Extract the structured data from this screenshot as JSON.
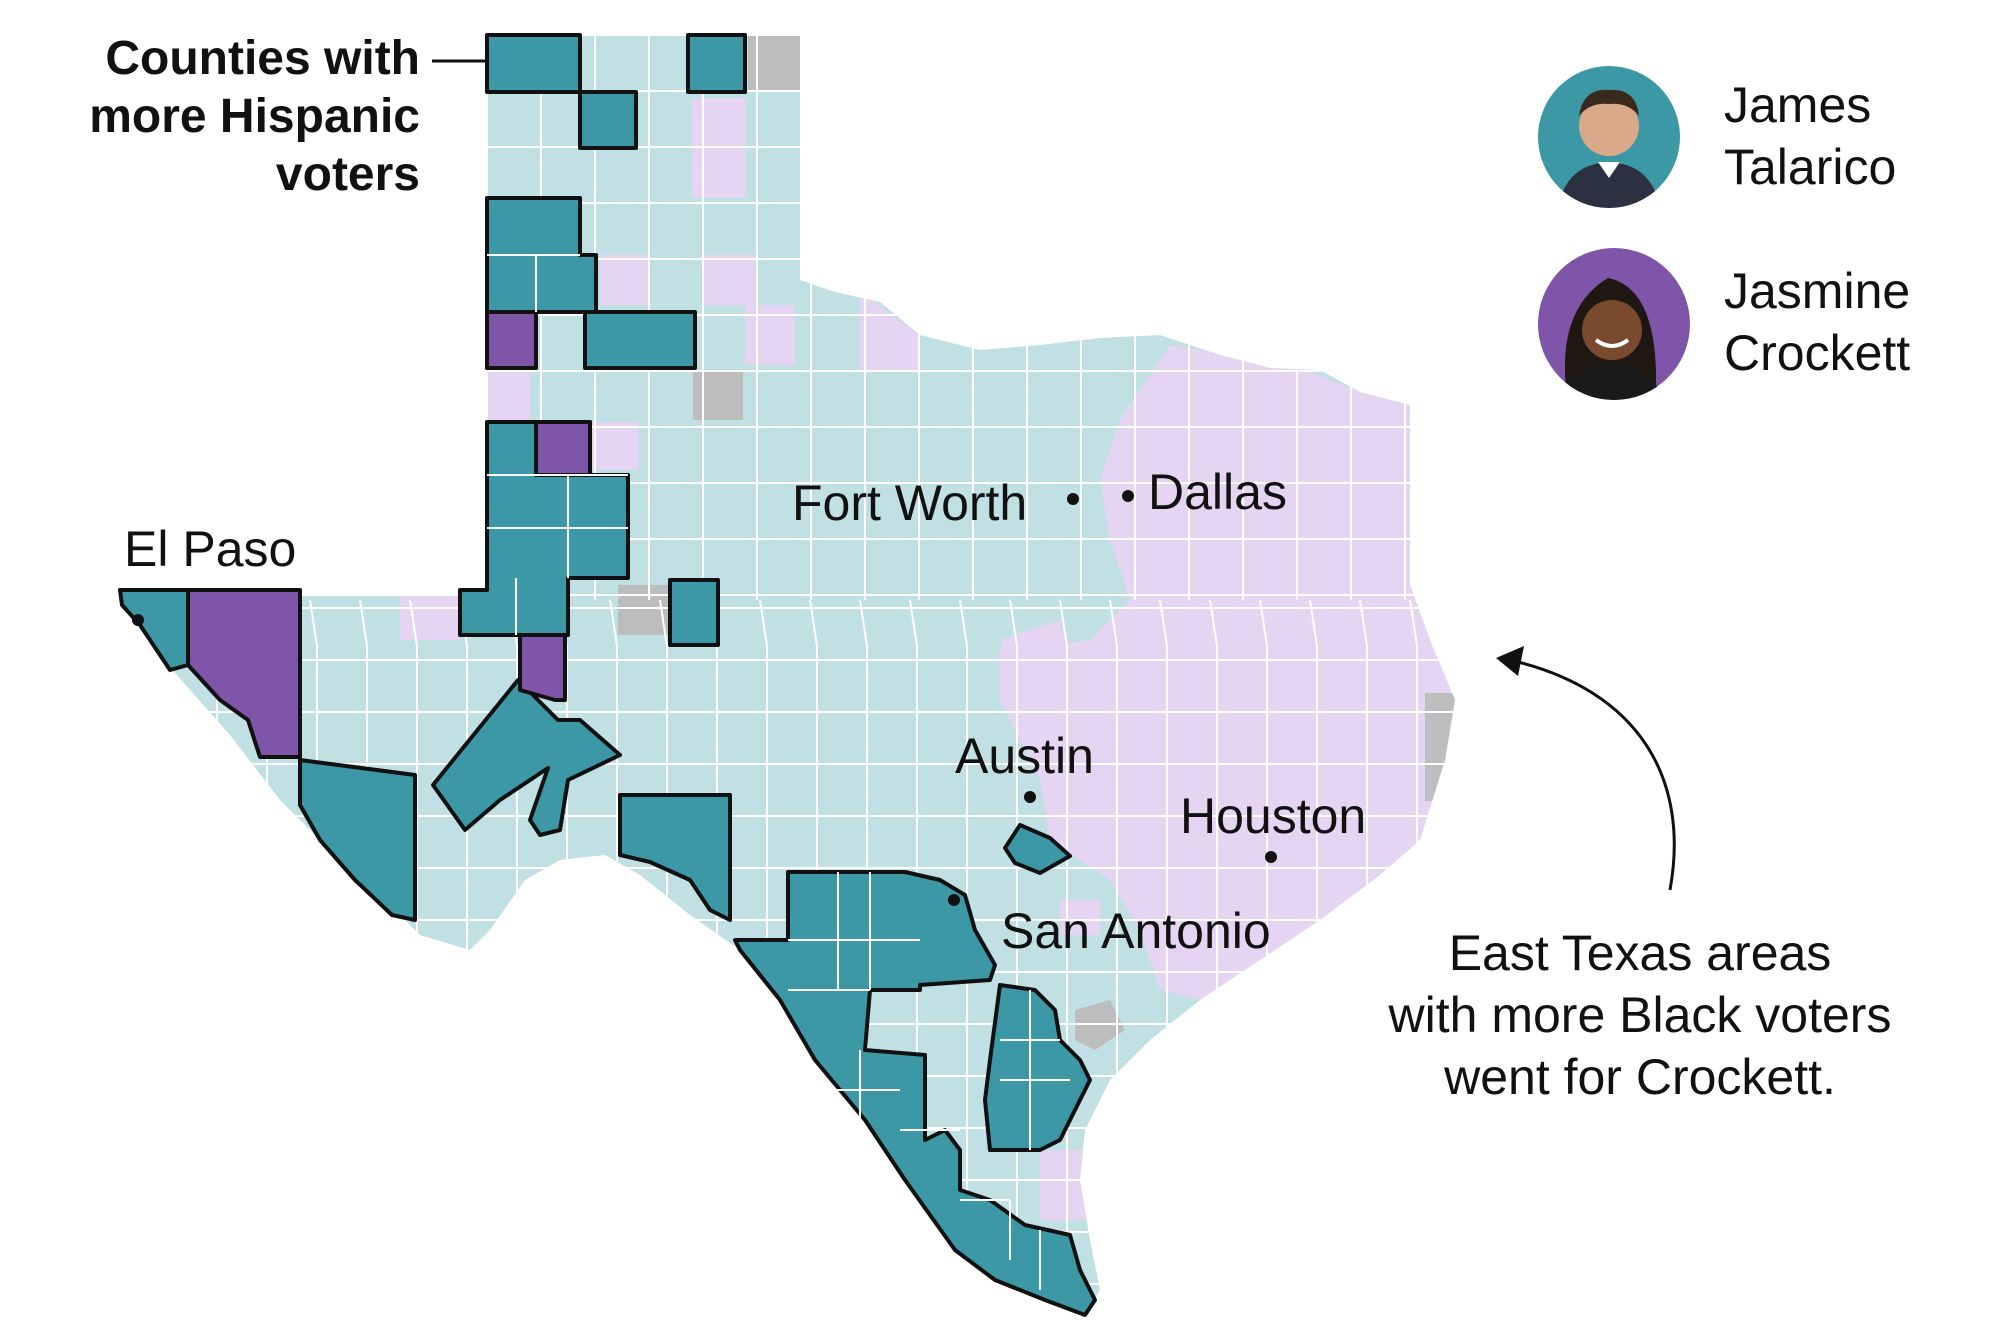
{
  "colors": {
    "talarico_strong": "#3d98a6",
    "talarico_light": "#c1e0e3",
    "crockett_strong": "#7e55a8",
    "crockett_light": "#e5d4f2",
    "no_data": "#bdbdbd"
  },
  "legend": {
    "candidate_1": {
      "first": "James",
      "last": "Talarico",
      "color": "#3d98a6",
      "icon": "candidate-photo-talarico"
    },
    "candidate_2": {
      "first": "Jasmine",
      "last": "Crockett",
      "color": "#7e55a8",
      "icon": "candidate-photo-crockett"
    }
  },
  "annotations": {
    "hispanic_line1": "Counties with",
    "hispanic_line2": "more Hispanic",
    "hispanic_line3": "voters",
    "east_line1": "East Texas areas",
    "east_line2": "with more Black voters",
    "east_line3": "went for Crockett."
  },
  "cities": {
    "el_paso": "El Paso",
    "fort_worth": "Fort Worth",
    "dallas": "Dallas",
    "austin": "Austin",
    "houston": "Houston",
    "san_antonio": "San Antonio"
  }
}
